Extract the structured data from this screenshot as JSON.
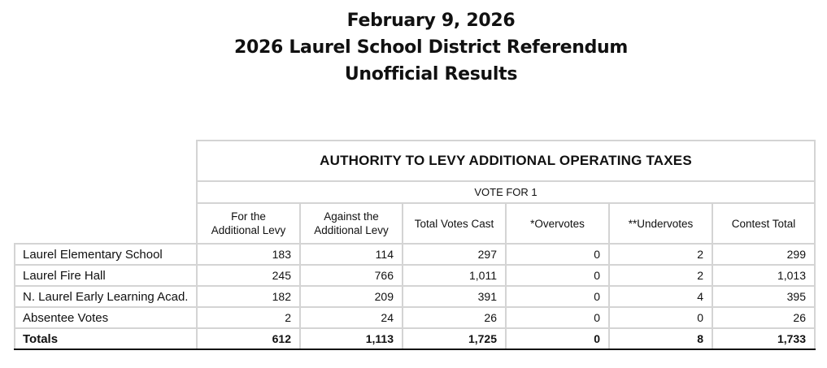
{
  "header": {
    "date": "February 9, 2026",
    "title": "2026 Laurel School District Referendum",
    "subtitle": "Unofficial Results"
  },
  "table": {
    "contest": "AUTHORITY TO LEVY ADDITIONAL OPERATING TAXES",
    "vote_for": "VOTE FOR 1",
    "columns": [
      {
        "line1": "For the",
        "line2": "Additional Levy"
      },
      {
        "line1": "Against the",
        "line2": "Additional Levy"
      },
      {
        "line1": "Total Votes Cast",
        "line2": ""
      },
      {
        "line1": "*Overvotes",
        "line2": ""
      },
      {
        "line1": "**Undervotes",
        "line2": ""
      },
      {
        "line1": "Contest Total",
        "line2": ""
      }
    ],
    "rows": [
      {
        "label": "Laurel Elementary School",
        "values": [
          "183",
          "114",
          "297",
          "0",
          "2",
          "299"
        ]
      },
      {
        "label": "Laurel Fire Hall",
        "values": [
          "245",
          "766",
          "1,011",
          "0",
          "2",
          "1,013"
        ]
      },
      {
        "label": "N. Laurel Early Learning Acad.",
        "values": [
          "182",
          "209",
          "391",
          "0",
          "4",
          "395"
        ]
      },
      {
        "label": "Absentee Votes",
        "values": [
          "2",
          "24",
          "26",
          "0",
          "0",
          "26"
        ]
      }
    ],
    "totals": {
      "label": "Totals",
      "values": [
        "612",
        "1,113",
        "1,725",
        "0",
        "8",
        "1,733"
      ]
    }
  }
}
